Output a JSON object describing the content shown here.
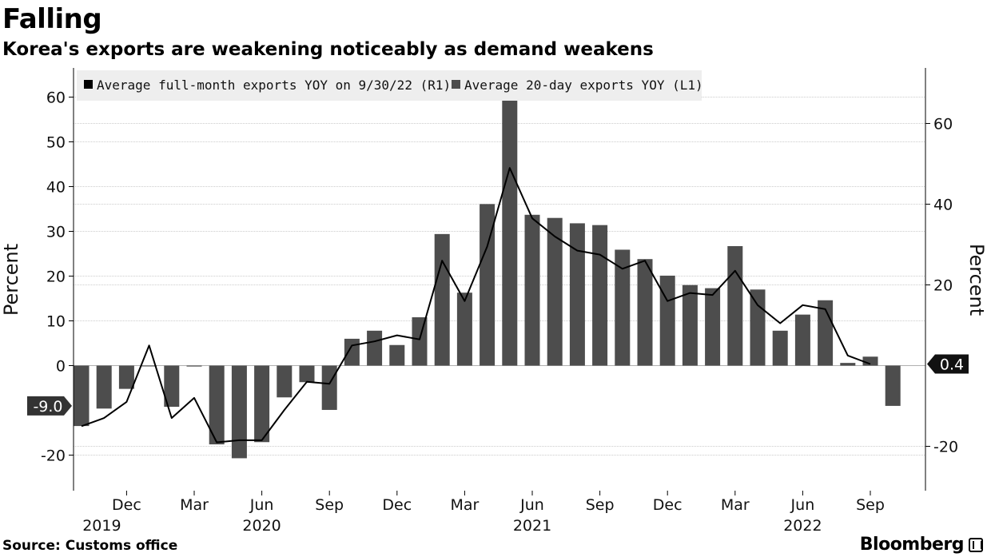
{
  "header": {
    "title": "Falling",
    "subtitle": "Korea's exports are weakening noticeably as demand weakens"
  },
  "footer": {
    "source": "Source: Customs office",
    "brand": "Bloomberg"
  },
  "colors": {
    "bars": "#4d4d4d",
    "line": "#000000",
    "grid": "#cccccc",
    "legend_bg": "#eeeeee"
  },
  "chart_data": {
    "type": "bar",
    "title": "",
    "xlabel": "",
    "ylabel_left": "Percent",
    "ylabel_right": "Percent",
    "ylim_left": [
      -27,
      65
    ],
    "ylim_right": [
      -30,
      75
    ],
    "yticks_left": [
      -20,
      0,
      10,
      20,
      30,
      40,
      50,
      60
    ],
    "yticks_right": [
      -20,
      20,
      40,
      60
    ],
    "x_month_labels": [
      "Dec",
      "Mar",
      "Jun",
      "Sep",
      "Dec",
      "Mar",
      "Jun",
      "Sep",
      "Dec",
      "Mar",
      "Jun",
      "Sep"
    ],
    "x_year_labels": [
      "2019",
      "2020",
      "2021",
      "2022"
    ],
    "legend_position": "top-left",
    "grid": true,
    "categories": [
      "2019-10",
      "2019-11",
      "2019-12",
      "2020-01",
      "2020-02",
      "2020-03",
      "2020-04",
      "2020-05",
      "2020-06",
      "2020-07",
      "2020-08",
      "2020-09",
      "2020-10",
      "2020-11",
      "2020-12",
      "2021-01",
      "2021-02",
      "2021-03",
      "2021-04",
      "2021-05",
      "2021-06",
      "2021-07",
      "2021-08",
      "2021-09",
      "2021-10",
      "2021-11",
      "2021-12",
      "2022-01",
      "2022-02",
      "2022-03",
      "2022-04",
      "2022-05",
      "2022-06",
      "2022-07",
      "2022-08",
      "2022-09",
      "2022-10"
    ],
    "series": [
      {
        "name": "Average 20-day exports YOY (L1)",
        "axis": "left",
        "type": "bar",
        "values": [
          -13.5,
          -9.6,
          -5.2,
          0,
          -9.2,
          -0.2,
          -17.6,
          -20.7,
          -17.1,
          -7.1,
          -3.7,
          -9.9,
          6.0,
          7.8,
          4.6,
          10.8,
          29.4,
          16.3,
          36.1,
          59.4,
          33.7,
          33.0,
          31.8,
          31.4,
          25.9,
          23.8,
          20.1,
          18.0,
          17.3,
          26.7,
          17.0,
          7.8,
          11.4,
          14.6,
          0.6,
          2.0,
          -9.0
        ]
      },
      {
        "name": "Average full-month exports YOY on 9/30/22 (R1)",
        "axis": "right",
        "type": "line",
        "values": [
          -15,
          -13,
          -9,
          5,
          -13,
          -8,
          -19,
          -18.5,
          -18.5,
          -11,
          -4,
          -4.5,
          5,
          6,
          7.5,
          6.5,
          26,
          16,
          29.5,
          49,
          36.5,
          32,
          28.5,
          27.5,
          24,
          26,
          16,
          18,
          17.5,
          23.5,
          15,
          10.5,
          15,
          14,
          2.5,
          0.4,
          null
        ]
      }
    ],
    "annotations": [
      {
        "label": "-9.0",
        "axis": "left",
        "value": -9.0
      },
      {
        "label": "0.4",
        "axis": "right",
        "value": 0.4
      }
    ]
  }
}
